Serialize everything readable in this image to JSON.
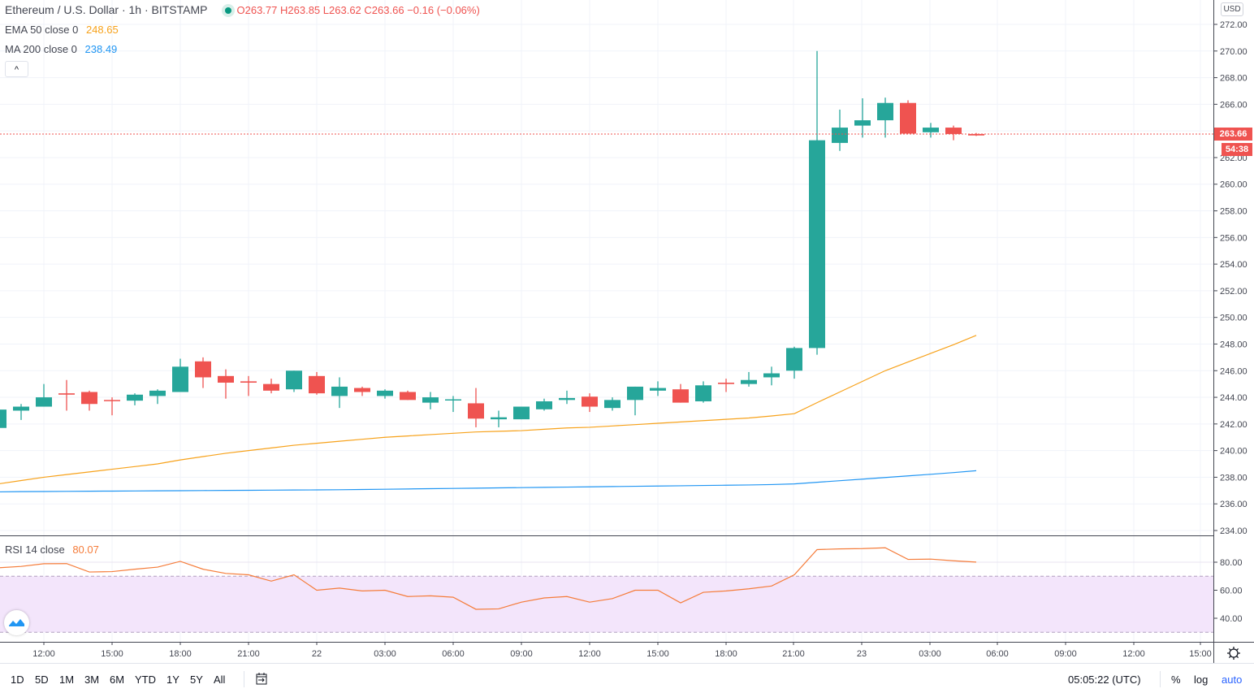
{
  "header": {
    "symbol_title": "Ethereum / U.S. Dollar · 1h · BITSTAMP",
    "ohlc": {
      "o_label": "O",
      "o": "263.77",
      "h_label": "H",
      "h": "263.85",
      "l_label": "L",
      "l": "263.62",
      "c_label": "C",
      "c": "263.66",
      "change": "−0.16 (−0.06%)"
    },
    "status_color": "#089981"
  },
  "indicators": {
    "ema": {
      "label": "EMA 50 close 0",
      "value": "248.65",
      "color": "#f7a21b"
    },
    "ma": {
      "label": "MA 200 close 0",
      "value": "238.49",
      "color": "#2196f3"
    },
    "rsi": {
      "label": "RSI 14 close",
      "value": "80.07",
      "color": "#f57c3a"
    }
  },
  "collapse_button": "^",
  "price_axis": {
    "currency": "USD",
    "ticks": [
      "234.00",
      "236.00",
      "238.00",
      "240.00",
      "242.00",
      "244.00",
      "246.00",
      "248.00",
      "250.00",
      "252.00",
      "254.00",
      "256.00",
      "258.00",
      "260.00",
      "262.00",
      "266.00",
      "268.00",
      "270.00",
      "272.00"
    ],
    "last_price": "263.66",
    "countdown": "54:38",
    "rsi_ticks": [
      "40.00",
      "60.00",
      "80.00"
    ]
  },
  "time_axis": [
    "12:00",
    "15:00",
    "18:00",
    "21:00",
    "22",
    "03:00",
    "06:00",
    "09:00",
    "12:00",
    "15:00",
    "18:00",
    "21:00",
    "23",
    "03:00",
    "06:00",
    "09:00",
    "12:00",
    "15:00"
  ],
  "colors": {
    "up": "#26a69a",
    "down": "#ef5350",
    "rsi_band": "#f3e5fb"
  },
  "chart_data": {
    "type": "candlestick",
    "x_interval": "1h",
    "ylim": [
      233.6,
      272.9
    ],
    "candles": [
      [
        241.7,
        243.1,
        241.7,
        243.08
      ],
      [
        243.0,
        243.5,
        242.3,
        243.3
      ],
      [
        243.3,
        245.0,
        243.3,
        244.0
      ],
      [
        244.3,
        245.3,
        243.0,
        244.2
      ],
      [
        244.4,
        244.5,
        243.0,
        243.5
      ],
      [
        243.8,
        244.0,
        242.65,
        243.75
      ],
      [
        243.75,
        244.3,
        243.4,
        244.2
      ],
      [
        244.1,
        244.6,
        243.5,
        244.5
      ],
      [
        244.4,
        246.9,
        244.4,
        246.3
      ],
      [
        246.7,
        247.0,
        244.7,
        245.5
      ],
      [
        245.6,
        246.1,
        243.9,
        245.1
      ],
      [
        245.2,
        245.6,
        244.1,
        245.1
      ],
      [
        245.0,
        245.4,
        244.3,
        244.5
      ],
      [
        244.6,
        246.0,
        244.4,
        246.0
      ],
      [
        245.6,
        245.9,
        244.2,
        244.3
      ],
      [
        244.1,
        245.5,
        243.2,
        244.8
      ],
      [
        244.7,
        244.8,
        244.1,
        244.4
      ],
      [
        244.1,
        244.6,
        243.9,
        244.5
      ],
      [
        244.4,
        244.5,
        243.8,
        243.8
      ],
      [
        243.6,
        244.4,
        243.1,
        244.0
      ],
      [
        243.8,
        244.1,
        242.9,
        243.85
      ],
      [
        243.55,
        244.7,
        241.75,
        242.4
      ],
      [
        242.35,
        243.0,
        241.75,
        242.5
      ],
      [
        242.35,
        243.3,
        242.35,
        243.3
      ],
      [
        243.1,
        243.9,
        243.0,
        243.7
      ],
      [
        243.8,
        244.5,
        243.5,
        243.95
      ],
      [
        244.05,
        244.3,
        242.9,
        243.3
      ],
      [
        243.2,
        244.0,
        243.0,
        243.8
      ],
      [
        243.8,
        244.8,
        242.65,
        244.8
      ],
      [
        244.5,
        245.2,
        244.1,
        244.7
      ],
      [
        244.6,
        245.0,
        243.6,
        243.6
      ],
      [
        243.7,
        245.2,
        243.6,
        244.9
      ],
      [
        245.1,
        245.4,
        244.4,
        245.0
      ],
      [
        245.0,
        245.9,
        244.8,
        245.3
      ],
      [
        245.5,
        246.3,
        244.9,
        245.8
      ],
      [
        246.0,
        247.8,
        245.4,
        247.7
      ],
      [
        247.7,
        270.0,
        247.2,
        263.3
      ],
      [
        263.1,
        265.6,
        262.5,
        264.25
      ],
      [
        264.4,
        266.45,
        263.5,
        264.8
      ],
      [
        264.8,
        266.5,
        263.5,
        266.1
      ],
      [
        266.1,
        266.3,
        263.8,
        263.8
      ],
      [
        263.9,
        264.6,
        263.5,
        264.25
      ],
      [
        264.25,
        264.4,
        263.3,
        263.77
      ],
      [
        263.77,
        263.85,
        263.62,
        263.66
      ]
    ],
    "candle_fields": [
      "open",
      "high",
      "low",
      "close"
    ],
    "ema50": [
      237.5,
      237.75,
      238.0,
      238.2,
      238.4,
      238.6,
      238.8,
      239.0,
      239.3,
      239.55,
      239.8,
      240.0,
      240.2,
      240.4,
      240.55,
      240.7,
      240.85,
      241.0,
      241.1,
      241.2,
      241.3,
      241.4,
      241.45,
      241.5,
      241.6,
      241.7,
      241.75,
      241.85,
      241.95,
      242.05,
      242.15,
      242.25,
      242.35,
      242.45,
      242.6,
      242.77,
      243.6,
      244.4,
      245.2,
      246.0,
      246.65,
      247.3,
      247.95,
      248.65
    ],
    "ma200": [
      236.9,
      236.92,
      236.93,
      236.94,
      236.95,
      236.96,
      236.97,
      236.98,
      236.99,
      237.0,
      237.01,
      237.02,
      237.03,
      237.04,
      237.05,
      237.06,
      237.08,
      237.1,
      237.12,
      237.14,
      237.16,
      237.18,
      237.2,
      237.22,
      237.24,
      237.26,
      237.28,
      237.3,
      237.32,
      237.34,
      237.36,
      237.38,
      237.4,
      237.42,
      237.45,
      237.5,
      237.62,
      237.74,
      237.86,
      237.98,
      238.1,
      238.22,
      238.35,
      238.49
    ],
    "rsi": {
      "values": [
        76,
        77,
        78.9,
        79,
        73,
        73.3,
        75,
        76.5,
        80.6,
        75,
        72,
        71,
        66.5,
        71,
        60,
        61.5,
        59.5,
        60,
        55.5,
        56,
        55,
        46.4,
        46.7,
        51.5,
        54.5,
        55.5,
        51.5,
        54,
        60,
        60,
        51,
        58.5,
        59.5,
        61,
        63,
        71,
        89,
        89.5,
        89.7,
        90.3,
        82,
        82.2,
        81,
        80.07
      ],
      "upper_band": 70,
      "lower_band": 30,
      "ylim": [
        23,
        98.5
      ]
    }
  },
  "toolbar": {
    "ranges": [
      "1D",
      "5D",
      "1M",
      "3M",
      "6M",
      "YTD",
      "1Y",
      "5Y",
      "All"
    ],
    "clock": "05:05:22 (UTC)",
    "percent": "%",
    "log": "log",
    "auto": "auto"
  }
}
